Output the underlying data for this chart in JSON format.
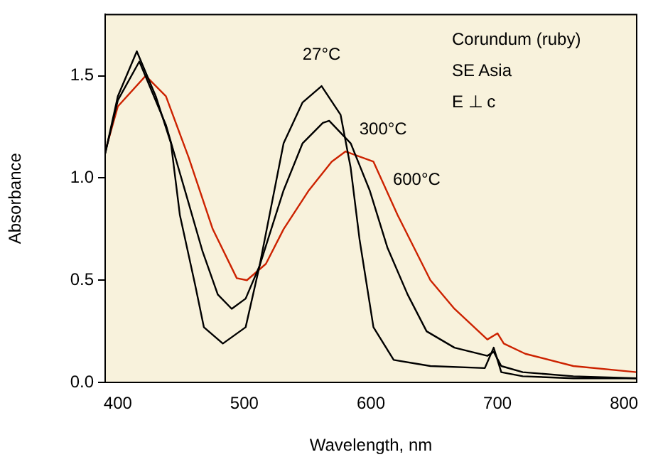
{
  "chart_data": {
    "type": "line",
    "xlabel": "Wavelength, nm",
    "ylabel": "Absorbance",
    "xlim": [
      390,
      810
    ],
    "xticks": [
      400,
      500,
      600,
      700,
      800
    ],
    "ylim": [
      0,
      1.8
    ],
    "yticks": [
      {
        "value": 0,
        "label": "0.0"
      },
      {
        "value": 0.5,
        "label": "0.5"
      },
      {
        "value": 1,
        "label": "1.0"
      },
      {
        "value": 1.5,
        "label": "1.5"
      }
    ],
    "grid": false,
    "legend": false,
    "marker": "none",
    "line_style": "solid",
    "series": [
      {
        "name": "27°C",
        "color": "#000000",
        "x": [
          390,
          400,
          415,
          430,
          442,
          449,
          461,
          468,
          483,
          501,
          512,
          531,
          546,
          561,
          576,
          584,
          591,
          602,
          618,
          647,
          690,
          697,
          703,
          720,
          760,
          810
        ],
        "values": [
          1.12,
          1.4,
          1.62,
          1.4,
          1.17,
          0.82,
          0.48,
          0.27,
          0.19,
          0.27,
          0.57,
          1.17,
          1.37,
          1.45,
          1.31,
          1.05,
          0.7,
          0.27,
          0.11,
          0.08,
          0.07,
          0.17,
          0.05,
          0.03,
          0.02,
          0.02
        ]
      },
      {
        "name": "300°C",
        "color": "#000000",
        "x": [
          390,
          400,
          417,
          438,
          453,
          467,
          479,
          490,
          501,
          512,
          531,
          546,
          562,
          567,
          584,
          599,
          613,
          629,
          644,
          666,
          692,
          697,
          703,
          720,
          760,
          810
        ],
        "values": [
          1.12,
          1.38,
          1.57,
          1.26,
          0.94,
          0.64,
          0.43,
          0.36,
          0.41,
          0.57,
          0.94,
          1.17,
          1.27,
          1.28,
          1.17,
          0.94,
          0.66,
          0.43,
          0.25,
          0.17,
          0.13,
          0.15,
          0.08,
          0.05,
          0.03,
          0.02
        ]
      },
      {
        "name": "600°C",
        "color": "#cc2200",
        "x": [
          390,
          400,
          422,
          438,
          456,
          475,
          494,
          502,
          517,
          531,
          551,
          569,
          580,
          602,
          621,
          647,
          666,
          692,
          700,
          705,
          722,
          760,
          810
        ],
        "values": [
          1.13,
          1.35,
          1.5,
          1.4,
          1.1,
          0.75,
          0.51,
          0.5,
          0.58,
          0.75,
          0.94,
          1.08,
          1.13,
          1.08,
          0.82,
          0.5,
          0.36,
          0.21,
          0.24,
          0.19,
          0.14,
          0.08,
          0.05
        ]
      }
    ],
    "annotations": [
      "Corundum (ruby)",
      "SE Asia",
      "E ⊥ c"
    ]
  }
}
